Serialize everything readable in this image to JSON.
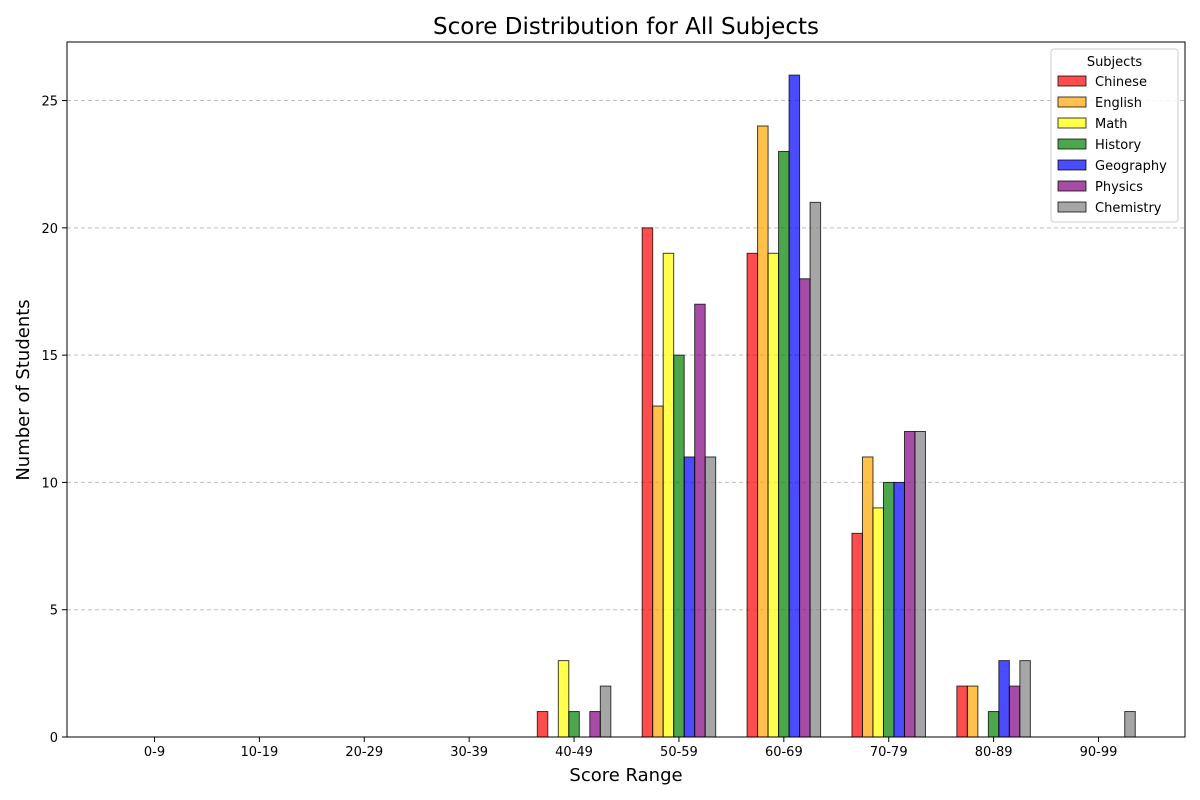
{
  "chart_data": {
    "type": "bar",
    "title": "Score Distribution for All Subjects",
    "xlabel": "Score Range",
    "ylabel": "Number of Students",
    "categories": [
      "0-9",
      "10-19",
      "20-29",
      "30-39",
      "40-49",
      "50-59",
      "60-69",
      "70-79",
      "80-89",
      "90-99"
    ],
    "ylim": [
      0,
      27.3
    ],
    "yticks": [
      0,
      5,
      10,
      15,
      20,
      25
    ],
    "grid": "y-dashed",
    "legend": {
      "title": "Subjects",
      "placement": "top-right"
    },
    "series": [
      {
        "name": "Chinese",
        "color": "#ff0000",
        "values": [
          0,
          0,
          0,
          0,
          1,
          20,
          19,
          8,
          2,
          0
        ]
      },
      {
        "name": "English",
        "color": "#ffa500",
        "values": [
          0,
          0,
          0,
          0,
          0,
          13,
          24,
          11,
          2,
          0
        ]
      },
      {
        "name": "Math",
        "color": "#ffff00",
        "values": [
          0,
          0,
          0,
          0,
          3,
          19,
          19,
          9,
          0,
          0
        ]
      },
      {
        "name": "History",
        "color": "#008000",
        "values": [
          0,
          0,
          0,
          0,
          1,
          15,
          23,
          10,
          1,
          0
        ]
      },
      {
        "name": "Geography",
        "color": "#0000ff",
        "values": [
          0,
          0,
          0,
          0,
          0,
          11,
          26,
          10,
          3,
          0
        ]
      },
      {
        "name": "Physics",
        "color": "#800080",
        "values": [
          0,
          0,
          0,
          0,
          1,
          17,
          18,
          12,
          2,
          0
        ]
      },
      {
        "name": "Chemistry",
        "color": "#808080",
        "values": [
          0,
          0,
          0,
          0,
          2,
          11,
          21,
          12,
          3,
          1
        ]
      }
    ]
  }
}
